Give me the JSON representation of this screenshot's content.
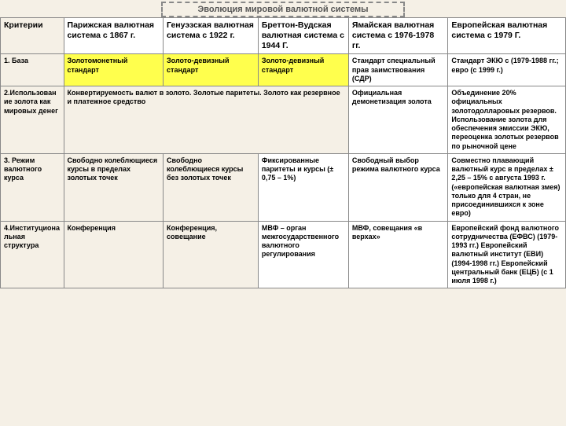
{
  "title": "Эволюция мировой валютной системы",
  "columns": {
    "crit": "Критерии",
    "c1": "Парижская валютная система с 1867 г.",
    "c2": "Генуэзская валютная система с 1922 г.",
    "c3": "Бреттон-Вудская валютная система с 1944 Г.",
    "c4": "Ямайская валютная система с 1976-1978 гг.",
    "c5": "Европейская валютная система с 1979 Г."
  },
  "rows": {
    "r1": {
      "label": "1. База",
      "c1": "Золотомонетный стандарт",
      "c2": "Золото-девизный стандарт",
      "c3": "Золото-девизный стандарт",
      "c4": "Стандарт специальный прав заимствования (СДР)",
      "c5": "Стандарт ЭКЮ\n с (1979-1988 гг.;\nевро (с 1999 г.)"
    },
    "r2": {
      "label": "2.Использование золота как мировых денег",
      "merged": "Конвертируемость валют в золото.\nЗолотые паритеты.\nЗолото как резервное и платежное средство",
      "c4": "Официальная демонетизация золота",
      "c5": "Объединение 20% официальных золотодолларовых резервов. Использование золота для обеспечения эмиссии ЭКЮ, переоценка золотых резервов по рыночной цене"
    },
    "r3": {
      "label": "3. Режим валютного курса",
      "c1": "Свободно колеблющиеся курсы в пределах золотых точек",
      "c2": "Свободно колеблющиеся курсы без золотых точек",
      "c3": "Фиксированные паритеты и курсы (± 0,75 – 1%)",
      "c4": "Свободный выбор режима валютного курса",
      "c5": "Совместно плавающий валютный курс в пределах ± 2,25 – 15% с августа 1993 г. («европейская валютная змея) только для 4 стран, не присоединившихся к зоне евро)"
    },
    "r4": {
      "label": "4.Институциональная структура",
      "c1": "Конференция",
      "c2": "Конференция, совещание",
      "c3": "МВФ – орган межгосударственного валютного регулирования",
      "c4": "МВФ, совещания «в верхах»",
      "c5": "Европейский фонд валютного сотрудничества (ЕФВС) (1979-1993 гг.) Европейский валютный институт (ЕВИ) (1994-1998 гг.) Европейский центральный банк (ЕЦБ) (с 1 июля 1998 г.)"
    }
  },
  "colors": {
    "parchment": "#f5f0e6",
    "yellow": "#ffff4d",
    "white": "#ffffff",
    "border": "#888888"
  }
}
